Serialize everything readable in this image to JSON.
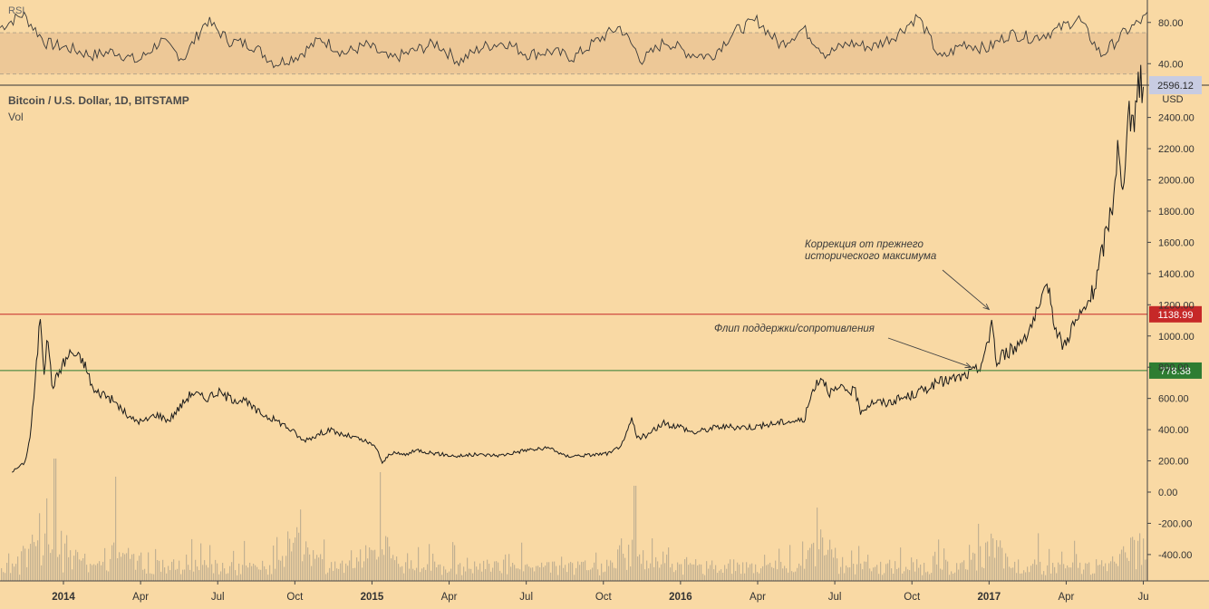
{
  "chart_data": [
    {
      "type": "line",
      "name": "RSI",
      "label": "RSI",
      "ylim": [
        20,
        100
      ],
      "band": [
        30,
        70
      ],
      "yticks": [
        "80.00",
        "40.00"
      ],
      "ytick_values": [
        80,
        40
      ],
      "series": [
        {
          "name": "RSI",
          "x": [
            0,
            0.02,
            0.04,
            0.06,
            0.08,
            0.1,
            0.12,
            0.14,
            0.16,
            0.18,
            0.2,
            0.22,
            0.24,
            0.26,
            0.28,
            0.3,
            0.32,
            0.34,
            0.36,
            0.38,
            0.4,
            0.42,
            0.44,
            0.46,
            0.48,
            0.5,
            0.52,
            0.54,
            0.56,
            0.58,
            0.6,
            0.62,
            0.64,
            0.66,
            0.68,
            0.7,
            0.72,
            0.74,
            0.76,
            0.78,
            0.8,
            0.82,
            0.84,
            0.86,
            0.88,
            0.9,
            0.92,
            0.94,
            0.96,
            0.98,
            1.0
          ],
          "values": [
            75,
            88,
            60,
            55,
            48,
            52,
            42,
            62,
            45,
            82,
            62,
            58,
            40,
            48,
            64,
            50,
            58,
            44,
            52,
            60,
            42,
            56,
            61,
            49,
            52,
            46,
            62,
            76,
            43,
            62,
            50,
            47,
            71,
            82,
            58,
            74,
            49,
            60,
            56,
            67,
            86,
            44,
            60,
            54,
            69,
            65,
            72,
            84,
            48,
            70,
            86
          ]
        }
      ]
    },
    {
      "type": "line",
      "name": "Bitcoin / U.S. Dollar, 1D, BITSTAMP",
      "title": "Bitcoin / U.S. Dollar, 1D, BITSTAMP",
      "ylabel": "USD",
      "unit": "USD",
      "ylim": [
        -580,
        2660
      ],
      "yticks": [
        "2400.00",
        "2200.00",
        "2000.00",
        "1800.00",
        "1600.00",
        "1400.00",
        "1200.00",
        "1000.00",
        "800.00",
        "600.00",
        "400.00",
        "200.00",
        "0.00",
        "-200.00",
        "-400.00"
      ],
      "ytick_values": [
        2400,
        2200,
        2000,
        1800,
        1600,
        1400,
        1200,
        1000,
        800,
        600,
        400,
        200,
        0,
        -200,
        -400
      ],
      "xlabels": [
        {
          "label": "2014",
          "month": 0,
          "bold": true
        },
        {
          "label": "Apr",
          "month": 3,
          "bold": false
        },
        {
          "label": "Jul",
          "month": 6,
          "bold": false
        },
        {
          "label": "Oct",
          "month": 9,
          "bold": false
        },
        {
          "label": "2015",
          "month": 12,
          "bold": true
        },
        {
          "label": "Apr",
          "month": 15,
          "bold": false
        },
        {
          "label": "Jul",
          "month": 18,
          "bold": false
        },
        {
          "label": "Oct",
          "month": 21,
          "bold": false
        },
        {
          "label": "2016",
          "month": 24,
          "bold": true
        },
        {
          "label": "Apr",
          "month": 27,
          "bold": false
        },
        {
          "label": "Jul",
          "month": 30,
          "bold": false
        },
        {
          "label": "Oct",
          "month": 33,
          "bold": false
        },
        {
          "label": "2017",
          "month": 36,
          "bold": true
        },
        {
          "label": "Apr",
          "month": 39,
          "bold": false
        },
        {
          "label": "Ju",
          "month": 42,
          "bold": false
        }
      ],
      "price_points": [
        {
          "month": -2.0,
          "price": 130
        },
        {
          "month": -1.5,
          "price": 190
        },
        {
          "month": -1.3,
          "price": 350
        },
        {
          "month": -1.1,
          "price": 700
        },
        {
          "month": -0.9,
          "price": 1140
        },
        {
          "month": -0.75,
          "price": 780
        },
        {
          "month": -0.6,
          "price": 1000
        },
        {
          "month": -0.45,
          "price": 680
        },
        {
          "month": -0.3,
          "price": 720
        },
        {
          "month": -0.1,
          "price": 800
        },
        {
          "month": 0.3,
          "price": 900
        },
        {
          "month": 0.8,
          "price": 830
        },
        {
          "month": 1.2,
          "price": 640
        },
        {
          "month": 1.6,
          "price": 630
        },
        {
          "month": 2.1,
          "price": 560
        },
        {
          "month": 2.6,
          "price": 470
        },
        {
          "month": 3.1,
          "price": 450
        },
        {
          "month": 3.6,
          "price": 500
        },
        {
          "month": 4.1,
          "price": 460
        },
        {
          "month": 4.6,
          "price": 560
        },
        {
          "month": 5.0,
          "price": 640
        },
        {
          "month": 5.5,
          "price": 600
        },
        {
          "month": 6.0,
          "price": 640
        },
        {
          "month": 6.5,
          "price": 600
        },
        {
          "month": 7.0,
          "price": 590
        },
        {
          "month": 7.5,
          "price": 520
        },
        {
          "month": 8.0,
          "price": 480
        },
        {
          "month": 8.5,
          "price": 440
        },
        {
          "month": 9.0,
          "price": 380
        },
        {
          "month": 9.3,
          "price": 330
        },
        {
          "month": 9.8,
          "price": 360
        },
        {
          "month": 10.3,
          "price": 400
        },
        {
          "month": 10.8,
          "price": 370
        },
        {
          "month": 11.3,
          "price": 350
        },
        {
          "month": 11.8,
          "price": 320
        },
        {
          "month": 12.2,
          "price": 280
        },
        {
          "month": 12.4,
          "price": 180
        },
        {
          "month": 12.7,
          "price": 250
        },
        {
          "month": 13.3,
          "price": 240
        },
        {
          "month": 13.8,
          "price": 270
        },
        {
          "month": 14.2,
          "price": 255
        },
        {
          "month": 14.8,
          "price": 240
        },
        {
          "month": 15.3,
          "price": 230
        },
        {
          "month": 16.0,
          "price": 240
        },
        {
          "month": 17.0,
          "price": 235
        },
        {
          "month": 18.0,
          "price": 270
        },
        {
          "month": 19.0,
          "price": 280
        },
        {
          "month": 19.5,
          "price": 230
        },
        {
          "month": 20.5,
          "price": 238
        },
        {
          "month": 21.3,
          "price": 250
        },
        {
          "month": 21.8,
          "price": 320
        },
        {
          "month": 22.1,
          "price": 470
        },
        {
          "month": 22.3,
          "price": 350
        },
        {
          "month": 22.7,
          "price": 360
        },
        {
          "month": 23.3,
          "price": 440
        },
        {
          "month": 24.0,
          "price": 420
        },
        {
          "month": 24.5,
          "price": 380
        },
        {
          "month": 25.0,
          "price": 400
        },
        {
          "month": 25.5,
          "price": 420
        },
        {
          "month": 26.0,
          "price": 415
        },
        {
          "month": 27.0,
          "price": 420
        },
        {
          "month": 28.0,
          "price": 450
        },
        {
          "month": 28.8,
          "price": 460
        },
        {
          "month": 29.2,
          "price": 680
        },
        {
          "month": 29.5,
          "price": 740
        },
        {
          "month": 29.8,
          "price": 640
        },
        {
          "month": 30.3,
          "price": 660
        },
        {
          "month": 30.8,
          "price": 640
        },
        {
          "month": 31.0,
          "price": 520
        },
        {
          "month": 31.5,
          "price": 580
        },
        {
          "month": 32.0,
          "price": 570
        },
        {
          "month": 33.0,
          "price": 620
        },
        {
          "month": 34.0,
          "price": 700
        },
        {
          "month": 35.0,
          "price": 740
        },
        {
          "month": 35.6,
          "price": 790
        },
        {
          "month": 36.0,
          "price": 960
        },
        {
          "month": 36.1,
          "price": 1140
        },
        {
          "month": 36.3,
          "price": 800
        },
        {
          "month": 36.5,
          "price": 880
        },
        {
          "month": 37.0,
          "price": 920
        },
        {
          "month": 37.5,
          "price": 1030
        },
        {
          "month": 38.0,
          "price": 1180
        },
        {
          "month": 38.3,
          "price": 1330
        },
        {
          "month": 38.6,
          "price": 1040
        },
        {
          "month": 38.9,
          "price": 930
        },
        {
          "month": 39.2,
          "price": 1050
        },
        {
          "month": 39.7,
          "price": 1160
        },
        {
          "month": 40.1,
          "price": 1300
        },
        {
          "month": 40.5,
          "price": 1620
        },
        {
          "month": 40.8,
          "price": 1850
        },
        {
          "month": 41.0,
          "price": 2200
        },
        {
          "month": 41.2,
          "price": 1880
        },
        {
          "month": 41.4,
          "price": 2500
        },
        {
          "month": 41.6,
          "price": 2300
        },
        {
          "month": 41.8,
          "price": 2650
        },
        {
          "month": 42.0,
          "price": 2596
        }
      ],
      "current_price": "2596.12",
      "horizontal_levels": [
        {
          "value": 1138.99,
          "label": "1138.99",
          "color": "#c62828"
        },
        {
          "value": 778.38,
          "label": "778.38",
          "color": "#2e7d32"
        }
      ],
      "annotations": [
        {
          "text": "Коррекция от прежнего исторического максимума",
          "lines": [
            "Коррекция от прежнего",
            "исторического максимума"
          ],
          "target_month": 36.0,
          "target_price": 1170
        },
        {
          "text": "Флип поддержки/сопротивления",
          "lines": [
            "Флип поддержки/сопротивления"
          ],
          "target_month": 35.3,
          "target_price": 800
        }
      ],
      "volume_series_name": "Vol"
    }
  ],
  "colors": {
    "background": "#f9d9a4",
    "price_line": "#1a1a1a",
    "rsi_band": "#edc897",
    "resistance": "#c62828",
    "support": "#2e7d32",
    "current_price_tag": "#c8cce2"
  }
}
